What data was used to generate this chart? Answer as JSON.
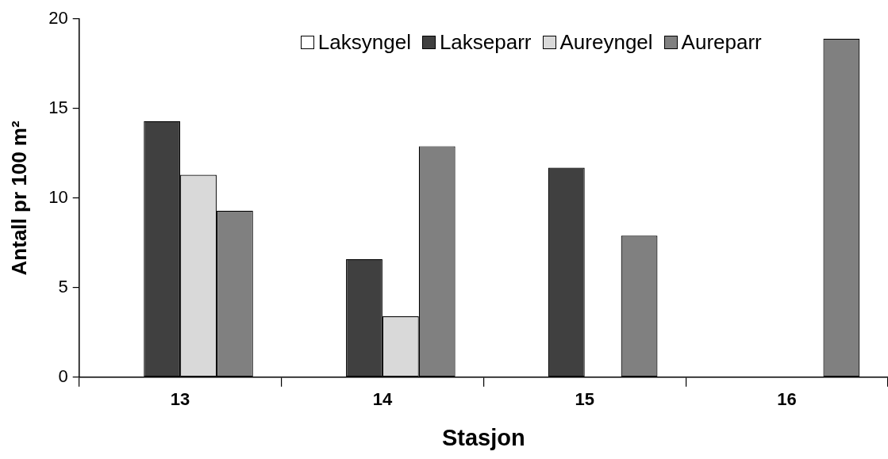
{
  "chart_data": {
    "type": "bar",
    "xlabel": "Stasjon",
    "ylabel": "Antall pr 100 m²",
    "categories": [
      "13",
      "14",
      "15",
      "16"
    ],
    "series": [
      {
        "name": "Laksyngel",
        "color": "#ffffff",
        "values": [
          0,
          0,
          0,
          0
        ]
      },
      {
        "name": "Lakseparr",
        "color": "#404040",
        "values": [
          14.3,
          6.6,
          11.7,
          0
        ]
      },
      {
        "name": "Aureyngel",
        "color": "#d9d9d9",
        "values": [
          11.3,
          3.4,
          0,
          0
        ]
      },
      {
        "name": "Aureparr",
        "color": "#808080",
        "values": [
          9.3,
          12.9,
          7.9,
          18.9
        ]
      }
    ],
    "ylim": [
      0,
      20
    ],
    "yticks": [
      0,
      5,
      10,
      15,
      20
    ],
    "grid": false,
    "legend": "top"
  }
}
